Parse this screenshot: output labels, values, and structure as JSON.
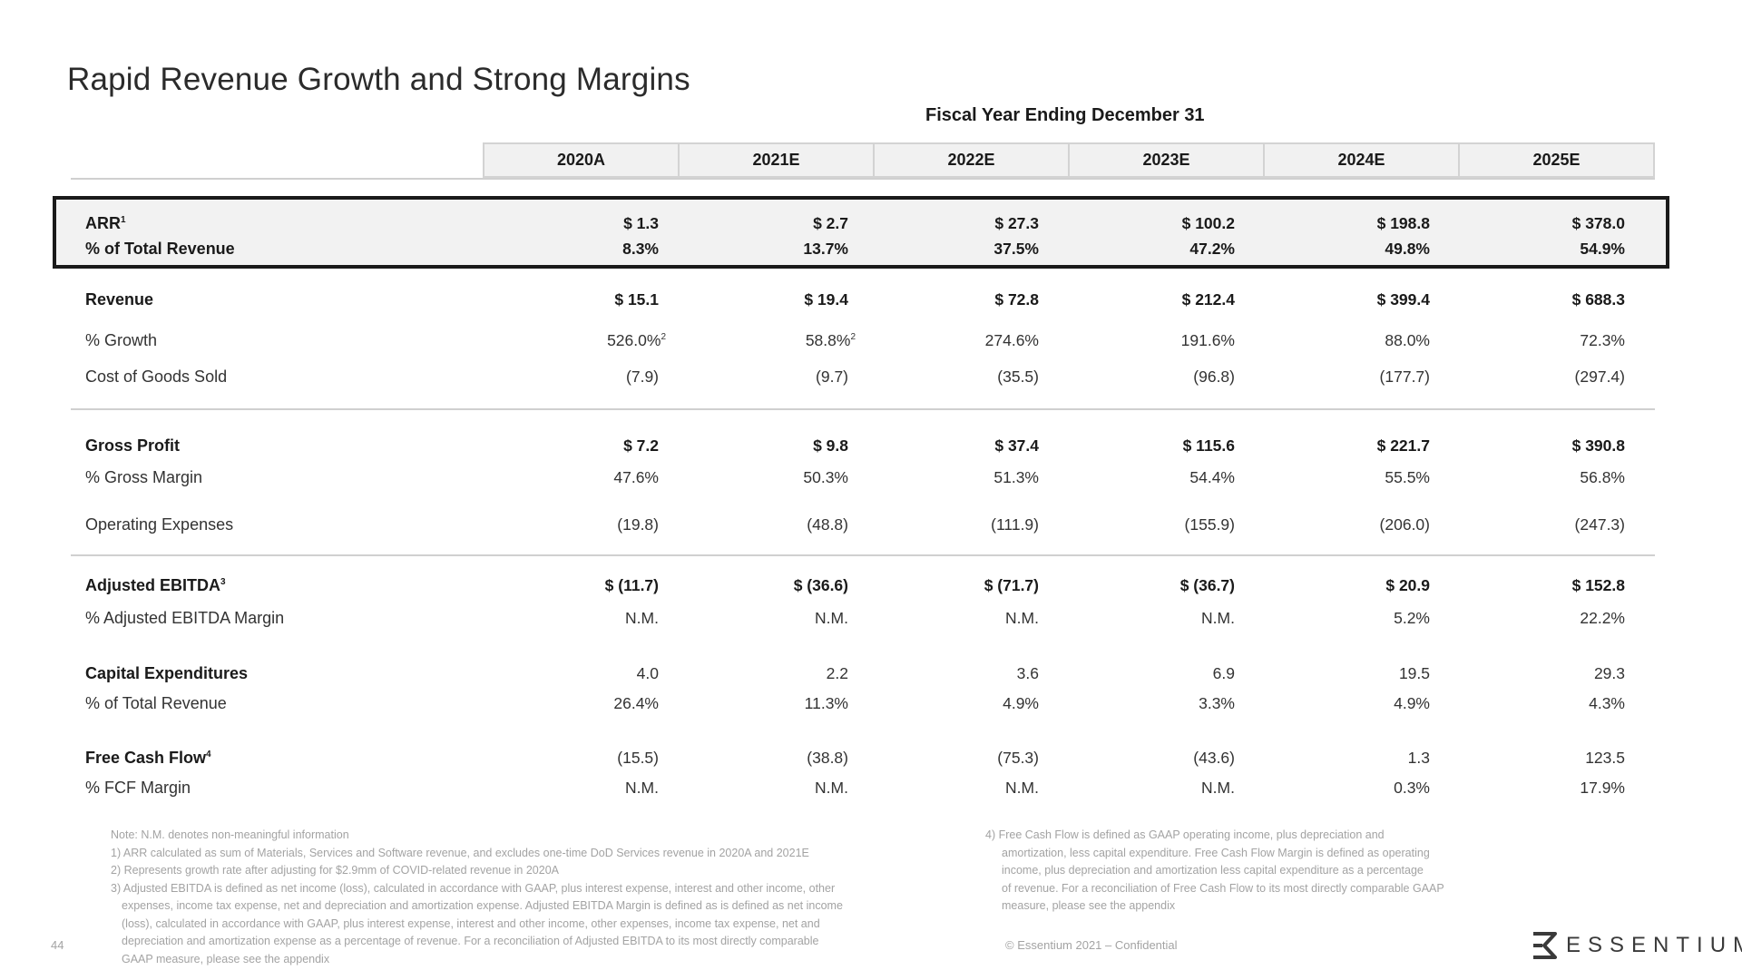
{
  "title": "Rapid Revenue Growth and Strong Margins",
  "subtitle": "Fiscal Year Ending December 31",
  "years": [
    "2020A",
    "2021E",
    "2022E",
    "2023E",
    "2024E",
    "2025E"
  ],
  "rows": {
    "arr": {
      "label": "ARR",
      "sup": "1",
      "values": [
        "$ 1.3",
        "$ 2.7",
        "$ 27.3",
        "$ 100.2",
        "$ 198.8",
        "$ 378.0"
      ]
    },
    "arr_pct": {
      "label": "% of Total Revenue",
      "values": [
        "8.3%",
        "13.7%",
        "37.5%",
        "47.2%",
        "49.8%",
        "54.9%"
      ]
    },
    "revenue": {
      "label": "Revenue",
      "values": [
        "$ 15.1",
        "$ 19.4",
        "$ 72.8",
        "$ 212.4",
        "$ 399.4",
        "$ 688.3"
      ]
    },
    "growth": {
      "label": "% Growth",
      "values": [
        "526.0%",
        "58.8%",
        "274.6%",
        "191.6%",
        "88.0%",
        "72.3%"
      ],
      "sups": [
        "2",
        "2",
        "",
        "",
        "",
        ""
      ]
    },
    "cogs": {
      "label": "Cost of Goods Sold",
      "values": [
        "(7.9)",
        "(9.7)",
        "(35.5)",
        "(96.8)",
        "(177.7)",
        "(297.4)"
      ]
    },
    "gross_profit": {
      "label": "Gross Profit",
      "values": [
        "$ 7.2",
        "$ 9.8",
        "$ 37.4",
        "$ 115.6",
        "$ 221.7",
        "$ 390.8"
      ]
    },
    "gross_margin": {
      "label": "% Gross Margin",
      "values": [
        "47.6%",
        "50.3%",
        "51.3%",
        "54.4%",
        "55.5%",
        "56.8%"
      ]
    },
    "opex": {
      "label": "Operating Expenses",
      "values": [
        "(19.8)",
        "(48.8)",
        "(111.9)",
        "(155.9)",
        "(206.0)",
        "(247.3)"
      ]
    },
    "ebitda": {
      "label": "Adjusted EBITDA",
      "sup": "3",
      "values": [
        "$ (11.7)",
        "$ (36.6)",
        "$ (71.7)",
        "$ (36.7)",
        "$ 20.9",
        "$ 152.8"
      ]
    },
    "ebitda_margin": {
      "label": "% Adjusted EBITDA Margin",
      "values": [
        "N.M.",
        "N.M.",
        "N.M.",
        "N.M.",
        "5.2%",
        "22.2%"
      ]
    },
    "capex": {
      "label": "Capital Expenditures",
      "values": [
        "4.0",
        "2.2",
        "3.6",
        "6.9",
        "19.5",
        "29.3"
      ]
    },
    "capex_pct": {
      "label": "% of Total Revenue",
      "values": [
        "26.4%",
        "11.3%",
        "4.9%",
        "3.3%",
        "4.9%",
        "4.3%"
      ]
    },
    "fcf": {
      "label": "Free Cash Flow",
      "sup": "4",
      "values": [
        "(15.5)",
        "(38.8)",
        "(75.3)",
        "(43.6)",
        "1.3",
        "123.5"
      ]
    },
    "fcf_margin": {
      "label": "% FCF Margin",
      "values": [
        "N.M.",
        "N.M.",
        "N.M.",
        "N.M.",
        "0.3%",
        "17.9%"
      ]
    }
  },
  "footnotes_left": [
    "Note: N.M. denotes non-meaningful information",
    "1) ARR calculated as sum of Materials, Services and Software revenue, and excludes one-time DoD Services revenue in 2020A and 2021E",
    "2) Represents growth rate after adjusting for $2.9mm of COVID-related revenue in 2020A",
    "3) Adjusted EBITDA is defined as net income (loss), calculated in accordance with GAAP, plus interest expense, interest and other income, other",
    "expenses, income tax expense, net and depreciation and amortization expense. Adjusted EBITDA Margin is defined as is defined as net income",
    "(loss), calculated in accordance with GAAP, plus interest expense, interest and other income, other expenses, income tax expense, net and",
    "depreciation and amortization expense as a percentage of revenue. For a reconciliation of Adjusted EBITDA to its most directly comparable",
    "GAAP measure, please see the appendix"
  ],
  "footnotes_right": [
    "4) Free Cash Flow is defined as GAAP operating income, plus depreciation and",
    "amortization, less capital expenditure. Free Cash Flow Margin is defined as operating",
    "income, plus depreciation and amortization less capital expenditure as a percentage",
    "of revenue. For a reconciliation of Free Cash Flow to its most directly comparable GAAP",
    "measure, please see the appendix"
  ],
  "page_number": "44",
  "confidential": "© Essentium 2021 – Confidential",
  "logo_text": "ESSENTIUM",
  "colors": {
    "border": "#1a1a1a",
    "header_bg": "#f1f1f1",
    "footnote": "#a3a3a3"
  }
}
